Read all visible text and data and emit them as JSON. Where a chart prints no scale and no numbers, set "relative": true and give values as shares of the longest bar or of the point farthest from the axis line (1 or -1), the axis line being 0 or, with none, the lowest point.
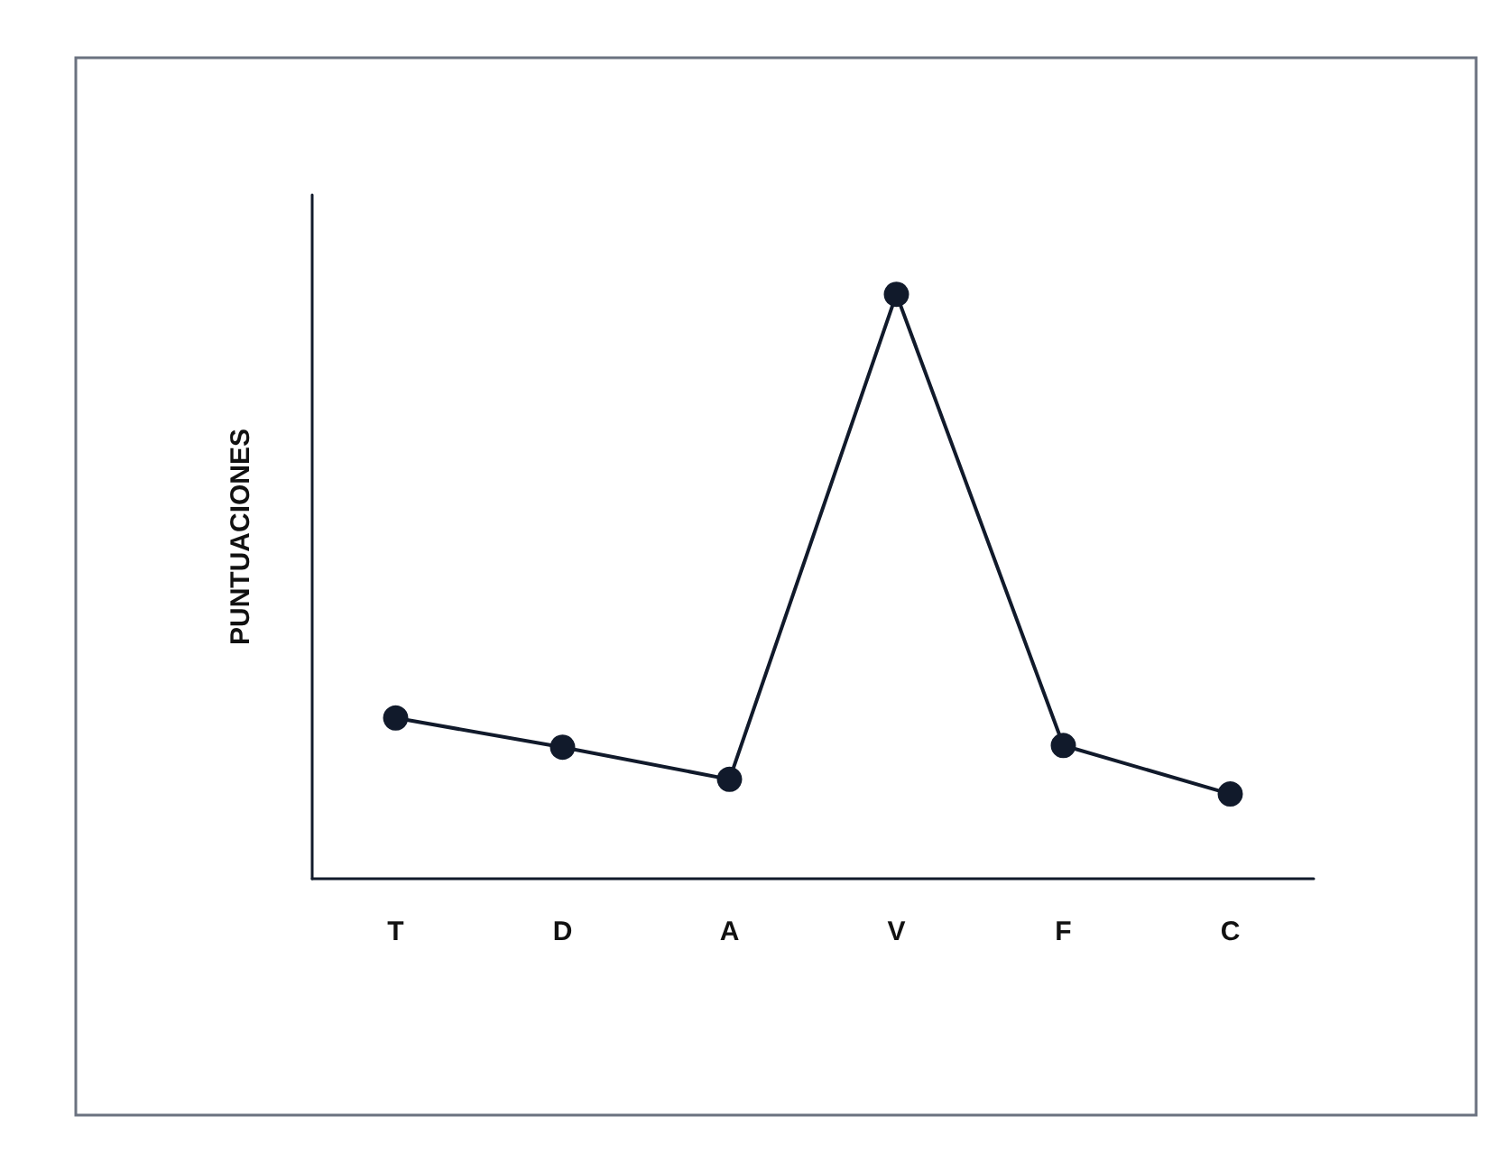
{
  "chart_data": {
    "type": "line",
    "ylabel": "PUNTUACIONES",
    "categories": [
      "T",
      "D",
      "A",
      "V",
      "F",
      "C"
    ],
    "series": [
      {
        "color": "#111a2b",
        "values": [
          0.275,
          0.225,
          0.17,
          1,
          0.228,
          0.145
        ]
      }
    ],
    "relative": true,
    "marker": "circle",
    "line_style": "solid",
    "grid": false
  }
}
